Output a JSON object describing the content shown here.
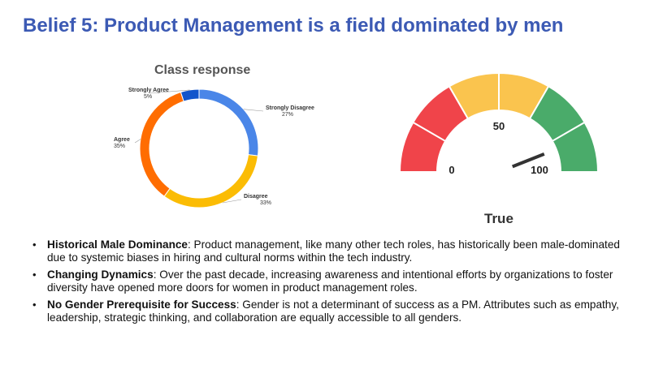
{
  "slide": {
    "title": "Belief 5: Product Management is a field dominated by men"
  },
  "chart_data": [
    {
      "type": "pie",
      "variant": "donut",
      "title": "Class response",
      "categories": [
        "Strongly Disagree",
        "Disagree",
        "Agree",
        "Strongly Agree"
      ],
      "values": [
        27,
        33,
        35,
        5
      ],
      "value_labels": [
        "27%",
        "33%",
        "35%",
        "5%"
      ],
      "colors": [
        "#4a86e8",
        "#fbbc04",
        "#ff6d01",
        "#1155cc"
      ]
    },
    {
      "type": "gauge",
      "min": 0,
      "max": 100,
      "value": 88,
      "tick_labels": [
        "0",
        "50",
        "100"
      ],
      "bands": [
        {
          "from": 0,
          "to": 16.7,
          "color": "#f0444a"
        },
        {
          "from": 16.7,
          "to": 33.3,
          "color": "#f0444a"
        },
        {
          "from": 33.3,
          "to": 50,
          "color": "#fac44e"
        },
        {
          "from": 50,
          "to": 66.7,
          "color": "#fac44e"
        },
        {
          "from": 66.7,
          "to": 83.3,
          "color": "#4aab6a"
        },
        {
          "from": 83.3,
          "to": 100,
          "color": "#4aab6a"
        }
      ],
      "verdict": "True"
    }
  ],
  "bullets": [
    {
      "heading": "Historical Male Dominance",
      "text": ": Product management, like many other tech roles, has historically been male-dominated due to systemic biases in hiring and cultural norms within the tech industry."
    },
    {
      "heading": "Changing Dynamics",
      "text": ": Over the past decade, increasing awareness and intentional efforts by organizations to foster diversity have opened more doors for women in product management roles."
    },
    {
      "heading": "No Gender Prerequisite for Success",
      "text": ": Gender is not a determinant of success as a PM. Attributes such as empathy, leadership, strategic thinking, and collaboration are equally accessible to all genders."
    }
  ]
}
